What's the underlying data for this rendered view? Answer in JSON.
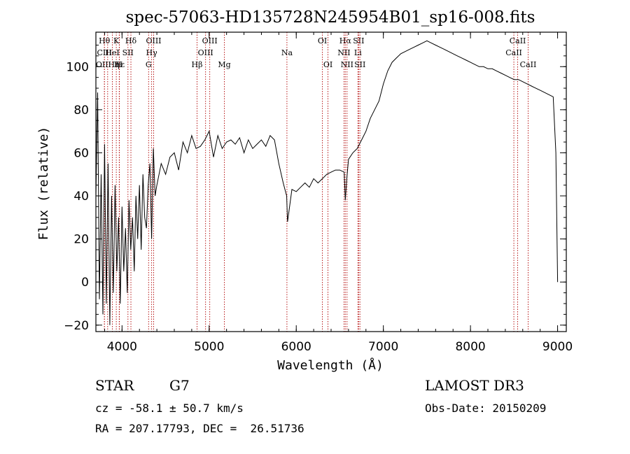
{
  "chart_data": {
    "type": "line",
    "title": "spec-57063-HD135728N245954B01_sp16-008.fits",
    "xlabel": "Wavelength (Å)",
    "ylabel": "Flux (relative)",
    "xlim": [
      3700,
      9100
    ],
    "ylim": [
      -23,
      116
    ],
    "xticks": [
      4000,
      5000,
      6000,
      7000,
      8000,
      9000
    ],
    "yticks": [
      -20,
      0,
      20,
      40,
      60,
      80,
      100
    ],
    "grid": false,
    "series": [
      {
        "name": "spectrum",
        "x": [
          3700,
          3720,
          3740,
          3760,
          3780,
          3800,
          3820,
          3840,
          3860,
          3880,
          3900,
          3920,
          3940,
          3960,
          3980,
          4000,
          4020,
          4040,
          4060,
          4080,
          4100,
          4120,
          4140,
          4160,
          4180,
          4200,
          4220,
          4240,
          4260,
          4280,
          4300,
          4320,
          4340,
          4360,
          4380,
          4400,
          4450,
          4500,
          4550,
          4600,
          4650,
          4700,
          4750,
          4800,
          4850,
          4900,
          4950,
          5000,
          5050,
          5100,
          5150,
          5200,
          5250,
          5300,
          5350,
          5400,
          5450,
          5500,
          5550,
          5600,
          5650,
          5700,
          5750,
          5800,
          5850,
          5890,
          5900,
          5950,
          6000,
          6050,
          6100,
          6150,
          6200,
          6250,
          6300,
          6350,
          6400,
          6450,
          6500,
          6550,
          6563,
          6580,
          6600,
          6650,
          6700,
          6750,
          6800,
          6850,
          6900,
          6950,
          7000,
          7050,
          7100,
          7150,
          7200,
          7250,
          7300,
          7350,
          7400,
          7450,
          7500,
          7550,
          7600,
          7650,
          7700,
          7750,
          7800,
          7850,
          7900,
          7950,
          8000,
          8050,
          8100,
          8150,
          8200,
          8250,
          8300,
          8350,
          8400,
          8450,
          8500,
          8550,
          8600,
          8650,
          8700,
          8750,
          8800,
          8850,
          8900,
          8950,
          8980,
          9000
        ],
        "y": [
          40,
          88,
          -8,
          50,
          -15,
          64,
          -10,
          55,
          -20,
          40,
          -5,
          45,
          5,
          30,
          -10,
          35,
          5,
          25,
          -5,
          38,
          15,
          30,
          5,
          40,
          20,
          45,
          15,
          50,
          30,
          25,
          45,
          55,
          20,
          62,
          40,
          45,
          55,
          50,
          58,
          60,
          52,
          65,
          60,
          68,
          62,
          63,
          66,
          70,
          58,
          68,
          62,
          65,
          66,
          64,
          67,
          60,
          66,
          62,
          64,
          66,
          63,
          68,
          66,
          55,
          46,
          40,
          28,
          43,
          42,
          44,
          46,
          44,
          48,
          46,
          48,
          50,
          51,
          52,
          52,
          51,
          38,
          48,
          57,
          60,
          62,
          66,
          70,
          76,
          80,
          84,
          92,
          98,
          102,
          104,
          106,
          107,
          108,
          109,
          110,
          111,
          112,
          111,
          110,
          109,
          108,
          107,
          106,
          105,
          104,
          103,
          102,
          101,
          100,
          100,
          99,
          99,
          98,
          97,
          96,
          95,
          94,
          94,
          93,
          92,
          91,
          90,
          89,
          88,
          87,
          86,
          60,
          0
        ]
      }
    ],
    "line_markers": [
      {
        "label": "Hθ",
        "x": 3798,
        "row": 1
      },
      {
        "label": "CIII",
        "x": 3798,
        "row": 2
      },
      {
        "label": "OIIHη",
        "x": 3835,
        "row": 3
      },
      {
        "label": "K",
        "x": 3934,
        "row": 1
      },
      {
        "label": "HeI",
        "x": 3889,
        "row": 2
      },
      {
        "label": "Hε",
        "x": 3970,
        "row": 3
      },
      {
        "label": "H",
        "x": 3968,
        "row": 3
      },
      {
        "label": "SII",
        "x": 4068,
        "row": 2
      },
      {
        "label": "Hδ",
        "x": 4102,
        "row": 1
      },
      {
        "label": "OIII",
        "x": 4363,
        "row": 1
      },
      {
        "label": "Hγ",
        "x": 4340,
        "row": 2
      },
      {
        "label": "G",
        "x": 4305,
        "row": 3
      },
      {
        "label": "Hβ",
        "x": 4861,
        "row": 3
      },
      {
        "label": "OIII",
        "x": 4959,
        "row": 2
      },
      {
        "label": "OIII",
        "x": 5007,
        "row": 1
      },
      {
        "label": "Mg",
        "x": 5175,
        "row": 3
      },
      {
        "label": "Na",
        "x": 5893,
        "row": 2
      },
      {
        "label": "OI",
        "x": 6300,
        "row": 1
      },
      {
        "label": "OI",
        "x": 6364,
        "row": 3
      },
      {
        "label": "Hα",
        "x": 6563,
        "row": 1
      },
      {
        "label": "NII",
        "x": 6548,
        "row": 2
      },
      {
        "label": "NII",
        "x": 6583,
        "row": 3
      },
      {
        "label": "SII",
        "x": 6716,
        "row": 1
      },
      {
        "label": "Li",
        "x": 6708,
        "row": 2
      },
      {
        "label": "SII",
        "x": 6731,
        "row": 3
      },
      {
        "label": "CaII",
        "x": 8542,
        "row": 1
      },
      {
        "label": "CaII",
        "x": 8498,
        "row": 2
      },
      {
        "label": "CaII",
        "x": 8662,
        "row": 3
      }
    ]
  },
  "info": {
    "obj_type": "STAR",
    "subclass": "G7",
    "survey": "LAMOST DR3",
    "cz": "cz = -58.1 ± 50.7 km/s",
    "obs_date": "Obs-Date: 20150209",
    "radec": "RA = 207.17793, DEC =  26.51736"
  }
}
